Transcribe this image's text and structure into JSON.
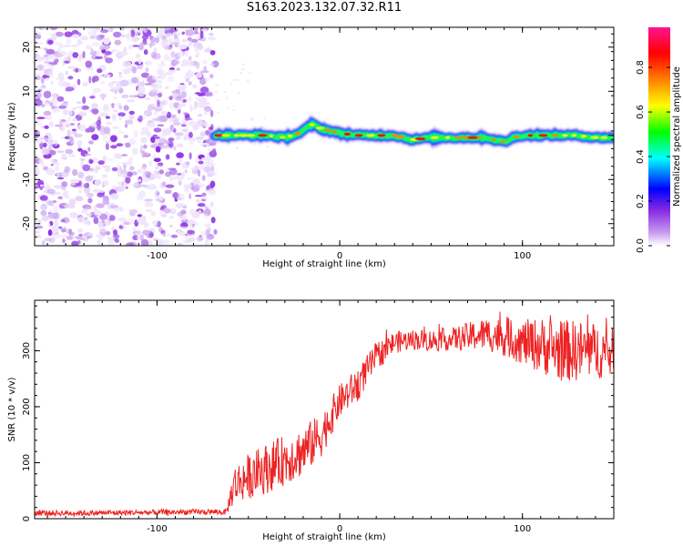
{
  "title": "S163.2023.132.07.32.R11",
  "chart_data": [
    {
      "type": "heatmap",
      "title": "S163.2023.132.07.32.R11",
      "xlabel": "Height of straight line (km)",
      "ylabel": "Frequency (Hz)",
      "xlim": [
        -167,
        150
      ],
      "ylim": [
        -25,
        24.5
      ],
      "x_ticks": [
        -100,
        0,
        100
      ],
      "y_ticks": [
        -20,
        -10,
        0,
        10,
        20
      ],
      "colorbar": {
        "label": "Normalized spectral amplitude",
        "range": [
          0,
          0.98
        ],
        "ticks": [
          0.0,
          0.2,
          0.4,
          0.6,
          0.8
        ],
        "colormap": [
          "#ffffff",
          "#8a2be2",
          "#0000ff",
          "#00ffff",
          "#00ff00",
          "#ffff00",
          "#ff8000",
          "#ff0000",
          "#ff1493"
        ]
      },
      "noise_region_x": [
        -167,
        -68
      ],
      "signal_ridge": {
        "x": [
          -68,
          -60,
          -50,
          -40,
          -30,
          -22,
          -15,
          -10,
          -5,
          0,
          10,
          20,
          30,
          40,
          50,
          60,
          70,
          80,
          90,
          95,
          100,
          110,
          120,
          130,
          140,
          150
        ],
        "frequency_hz": [
          0,
          0,
          0,
          0,
          -0.5,
          0.5,
          2.5,
          1.5,
          1,
          0.5,
          0,
          0,
          0,
          -1,
          -0.5,
          -0.5,
          -0.5,
          -0.5,
          -1.5,
          -0.5,
          0,
          0,
          0,
          0,
          -0.5,
          -0.5
        ]
      }
    },
    {
      "type": "line",
      "xlabel": "Height of straight line (km)",
      "ylabel": "SNR (10 * v/v)",
      "xlim": [
        -167,
        150
      ],
      "ylim": [
        0,
        390
      ],
      "x_ticks": [
        -100,
        0,
        100
      ],
      "y_ticks": [
        0,
        100,
        200,
        300
      ],
      "color": "#ee2222",
      "series": [
        {
          "x": [
            -167,
            -140,
            -110,
            -80,
            -62,
            -58,
            -50,
            -40,
            -30,
            -20,
            -10,
            0,
            10,
            20,
            30,
            40,
            50,
            60,
            70,
            80,
            90,
            100,
            110,
            120,
            130,
            140,
            150
          ],
          "values": [
            10,
            10,
            11,
            12,
            12,
            60,
            75,
            90,
            105,
            120,
            150,
            210,
            240,
            290,
            315,
            320,
            318,
            320,
            325,
            330,
            325,
            315,
            310,
            300,
            300,
            300,
            295
          ],
          "noise_amplitude": [
            5,
            5,
            5,
            5,
            5,
            35,
            40,
            45,
            45,
            45,
            40,
            30,
            30,
            25,
            20,
            18,
            20,
            20,
            25,
            30,
            35,
            40,
            50,
            55,
            55,
            50,
            45
          ]
        }
      ]
    }
  ]
}
